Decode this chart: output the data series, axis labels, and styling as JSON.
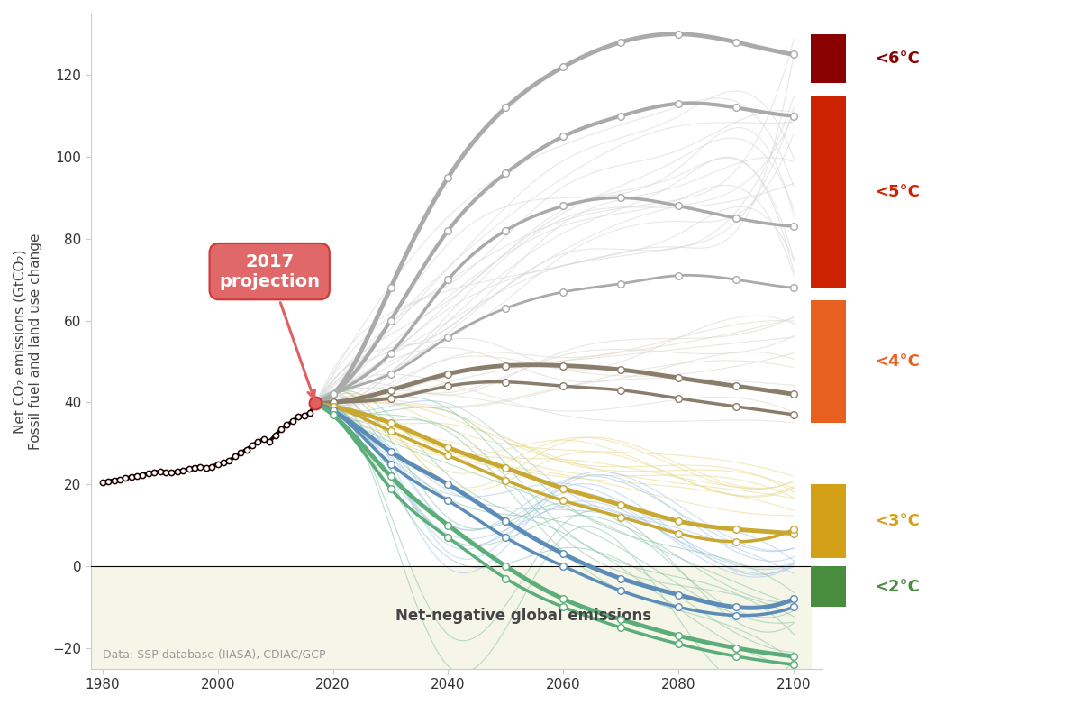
{
  "ylabel_line1": "Net CO₂ emissions (GtCO₂)",
  "ylabel_line2": "Fossil fuel and land use change",
  "xlim": [
    1978,
    2105
  ],
  "ylim": [
    -25,
    135
  ],
  "yticks": [
    -20,
    0,
    20,
    40,
    60,
    80,
    100,
    120
  ],
  "xticks": [
    1980,
    2000,
    2020,
    2040,
    2060,
    2080,
    2100
  ],
  "bg_color": "#ffffff",
  "net_negative_color": "#f5f5e8",
  "annotation_text": "2017\nprojection",
  "data_label": "Data: SSP database (IIASA), CDIAC/GCP",
  "historical_years": [
    1980,
    1981,
    1982,
    1983,
    1984,
    1985,
    1986,
    1987,
    1988,
    1989,
    1990,
    1991,
    1992,
    1993,
    1994,
    1995,
    1996,
    1997,
    1998,
    1999,
    2000,
    2001,
    2002,
    2003,
    2004,
    2005,
    2006,
    2007,
    2008,
    2009,
    2010,
    2011,
    2012,
    2013,
    2014,
    2015,
    2016,
    2017
  ],
  "historical_values": [
    20.5,
    20.8,
    21.0,
    21.2,
    21.5,
    21.8,
    22.1,
    22.3,
    22.7,
    22.9,
    23.2,
    23.0,
    22.9,
    23.1,
    23.4,
    23.7,
    24.1,
    24.3,
    24.0,
    24.3,
    25.0,
    25.3,
    25.8,
    26.8,
    27.8,
    28.5,
    29.5,
    30.5,
    31.0,
    30.5,
    32.0,
    33.5,
    34.5,
    35.5,
    36.5,
    36.8,
    37.5,
    39.8
  ],
  "scenario_years": [
    2020,
    2030,
    2040,
    2050,
    2060,
    2070,
    2080,
    2090,
    2100
  ],
  "thick_scenarios": [
    {
      "values": [
        42,
        68,
        95,
        112,
        122,
        128,
        130,
        128,
        125
      ],
      "color": "#aaaaaa",
      "lw": 3.5
    },
    {
      "values": [
        42,
        60,
        82,
        96,
        105,
        110,
        113,
        112,
        110
      ],
      "color": "#aaaaaa",
      "lw": 3.0
    },
    {
      "values": [
        42,
        52,
        70,
        82,
        88,
        90,
        88,
        85,
        83
      ],
      "color": "#aaaaaa",
      "lw": 2.5
    },
    {
      "values": [
        42,
        47,
        56,
        63,
        67,
        69,
        71,
        70,
        68
      ],
      "color": "#aaaaaa",
      "lw": 2.0
    },
    {
      "values": [
        40,
        43,
        47,
        49,
        49,
        48,
        46,
        44,
        42
      ],
      "color": "#8B7D6B",
      "lw": 3.5
    },
    {
      "values": [
        40,
        41,
        44,
        45,
        44,
        43,
        41,
        39,
        37
      ],
      "color": "#8B7D6B",
      "lw": 2.5
    },
    {
      "values": [
        39,
        35,
        29,
        24,
        19,
        15,
        11,
        9,
        8
      ],
      "color": "#C8A830",
      "lw": 3.5
    },
    {
      "values": [
        39,
        33,
        27,
        21,
        16,
        12,
        8,
        6,
        9
      ],
      "color": "#C8A830",
      "lw": 2.5
    },
    {
      "values": [
        38,
        28,
        20,
        11,
        3,
        -3,
        -7,
        -10,
        -8
      ],
      "color": "#5B8DB8",
      "lw": 3.5
    },
    {
      "values": [
        38,
        25,
        16,
        7,
        0,
        -6,
        -10,
        -12,
        -10
      ],
      "color": "#5B8DB8",
      "lw": 2.5
    },
    {
      "values": [
        37,
        22,
        10,
        0,
        -8,
        -13,
        -17,
        -20,
        -22
      ],
      "color": "#5BAD7A",
      "lw": 3.5
    },
    {
      "values": [
        37,
        19,
        7,
        -3,
        -10,
        -15,
        -19,
        -22,
        -24
      ],
      "color": "#5BAD7A",
      "lw": 2.5
    }
  ],
  "temperature_bars": [
    {
      "label": "<6°C",
      "color": "#8B0000",
      "ymin": 118,
      "ymax": 130
    },
    {
      "label": "<5°C",
      "color": "#CC2200",
      "ymin": 68,
      "ymax": 115
    },
    {
      "label": "<4°C",
      "color": "#E86020",
      "ymin": 35,
      "ymax": 65
    },
    {
      "label": "<3°C",
      "color": "#D4A017",
      "ymin": 2,
      "ymax": 20
    },
    {
      "label": "<2°C",
      "color": "#4A8C3F",
      "ymin": -10,
      "ymax": 0
    }
  ]
}
